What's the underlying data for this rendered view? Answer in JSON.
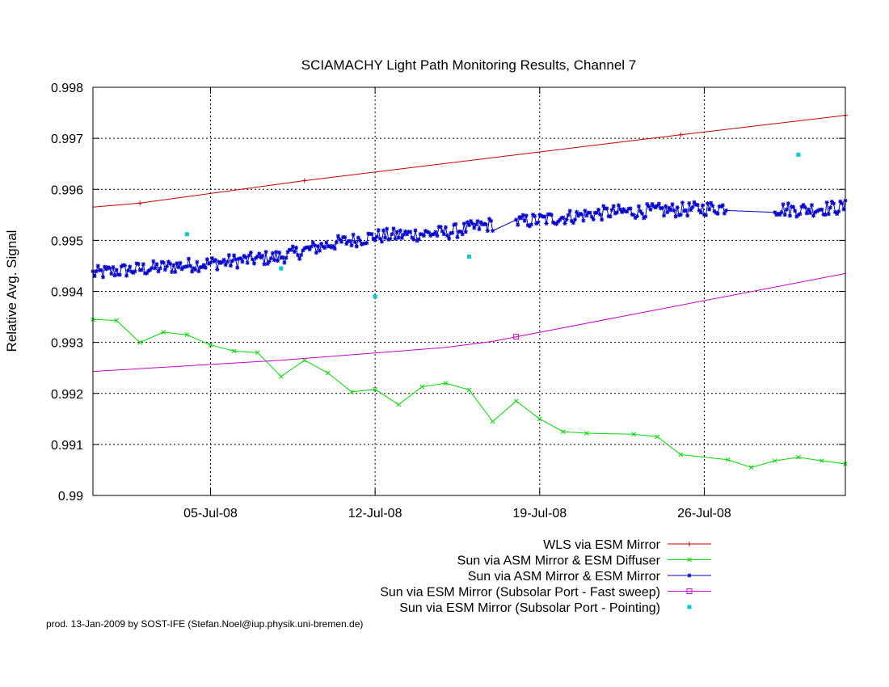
{
  "chart_data": {
    "type": "line",
    "title": "SCIAMACHY Light Path Monitoring Results, Channel 7",
    "xlabel": "",
    "ylabel": "Relative Avg. Signal",
    "x_axis": {
      "type": "date",
      "range": [
        "2008-06-30",
        "2008-08-01"
      ],
      "tick_dates": [
        "2008-07-05",
        "2008-07-12",
        "2008-07-19",
        "2008-07-26"
      ],
      "tick_labels": [
        "05-Jul-08",
        "12-Jul-08",
        "19-Jul-08",
        "26-Jul-08"
      ]
    },
    "y_axis": {
      "range": [
        0.99,
        0.998
      ],
      "ticks": [
        0.99,
        0.991,
        0.992,
        0.993,
        0.994,
        0.995,
        0.996,
        0.997,
        0.998
      ],
      "tick_labels": [
        "0.99",
        "0.991",
        "0.992",
        "0.993",
        "0.994",
        "0.995",
        "0.996",
        "0.997",
        "0.998"
      ]
    },
    "grid": true,
    "legend_position": "below",
    "series": [
      {
        "name": "WLS via ESM Mirror",
        "color": "#cc0000",
        "marker": "plus",
        "style": "line",
        "x": [
          "2008-06-30",
          "2008-07-02",
          "2008-07-09",
          "2008-07-25",
          "2008-08-01"
        ],
        "y": [
          0.99565,
          0.99573,
          0.99617,
          0.99707,
          0.99745
        ],
        "markers_at": [
          "2008-07-02",
          "2008-07-09",
          "2008-07-25",
          "2008-08-01"
        ]
      },
      {
        "name": "Sun via ASM Mirror & ESM Diffuser",
        "color": "#00dd00",
        "marker": "x",
        "style": "linespoints",
        "x": [
          "2008-06-30",
          "2008-07-01",
          "2008-07-02",
          "2008-07-03",
          "2008-07-04",
          "2008-07-05",
          "2008-07-06",
          "2008-07-07",
          "2008-07-08",
          "2008-07-09",
          "2008-07-10",
          "2008-07-11",
          "2008-07-12",
          "2008-07-13",
          "2008-07-14",
          "2008-07-15",
          "2008-07-16",
          "2008-07-17",
          "2008-07-18",
          "2008-07-19",
          "2008-07-20",
          "2008-07-21",
          "2008-07-23",
          "2008-07-24",
          "2008-07-25",
          "2008-07-27",
          "2008-07-28",
          "2008-07-29",
          "2008-07-30",
          "2008-07-31",
          "2008-08-01"
        ],
        "y": [
          0.99345,
          0.99343,
          0.993,
          0.9932,
          0.99315,
          0.99295,
          0.99283,
          0.9928,
          0.99233,
          0.99265,
          0.9924,
          0.99203,
          0.99208,
          0.99178,
          0.99213,
          0.9922,
          0.99207,
          0.99145,
          0.99185,
          0.9915,
          0.99125,
          0.99122,
          0.9912,
          0.99115,
          0.9908,
          0.9907,
          0.99055,
          0.99068,
          0.99075,
          0.99068,
          0.99062
        ]
      },
      {
        "name": "Sun via ASM Mirror & ESM Mirror",
        "color": "#0000cc",
        "marker": "star",
        "style": "linespoints",
        "points_per_day": 14,
        "x_start": "2008-06-30",
        "x_end": "2008-08-01",
        "gaps": [
          [
            "2008-07-17",
            "2008-07-18"
          ],
          [
            "2008-07-27",
            "2008-07-29"
          ]
        ],
        "trend": [
          [
            "2008-06-30",
            0.99435
          ],
          [
            "2008-07-01",
            0.9944
          ],
          [
            "2008-07-05",
            0.99455
          ],
          [
            "2008-07-08",
            0.99468
          ],
          [
            "2008-07-10",
            0.99492
          ],
          [
            "2008-07-12",
            0.99508
          ],
          [
            "2008-07-15",
            0.99515
          ],
          [
            "2008-07-17",
            0.99532
          ],
          [
            "2008-07-19",
            0.9954
          ],
          [
            "2008-07-22",
            0.99555
          ],
          [
            "2008-07-25",
            0.9956
          ],
          [
            "2008-07-27",
            0.99565
          ],
          [
            "2008-07-30",
            0.9956
          ],
          [
            "2008-08-01",
            0.99565
          ]
        ],
        "scatter": 0.00014
      },
      {
        "name": "Sun via ESM Mirror (Subsolar Port - Fast sweep)",
        "color": "#cc00cc",
        "marker": "square",
        "style": "line",
        "x": [
          "2008-06-30",
          "2008-07-08",
          "2008-07-15",
          "2008-07-17",
          "2008-07-18",
          "2008-08-01"
        ],
        "y": [
          0.99243,
          0.99265,
          0.9929,
          0.99302,
          0.99311,
          0.99435
        ],
        "markers_at": [
          "2008-07-18"
        ]
      },
      {
        "name": "Sun via ESM Mirror (Subsolar Port - Pointing)",
        "color": "#00cccc",
        "marker": "dot",
        "style": "points",
        "x": [
          "2008-07-04",
          "2008-07-08",
          "2008-07-12",
          "2008-07-16",
          "2008-07-30"
        ],
        "y": [
          0.99512,
          0.99445,
          0.9939,
          0.99468,
          0.99668
        ]
      }
    ]
  },
  "footer": "prod. 13-Jan-2009 by SOST-IFE (Stefan.Noel@iup.physik.uni-bremen.de)"
}
